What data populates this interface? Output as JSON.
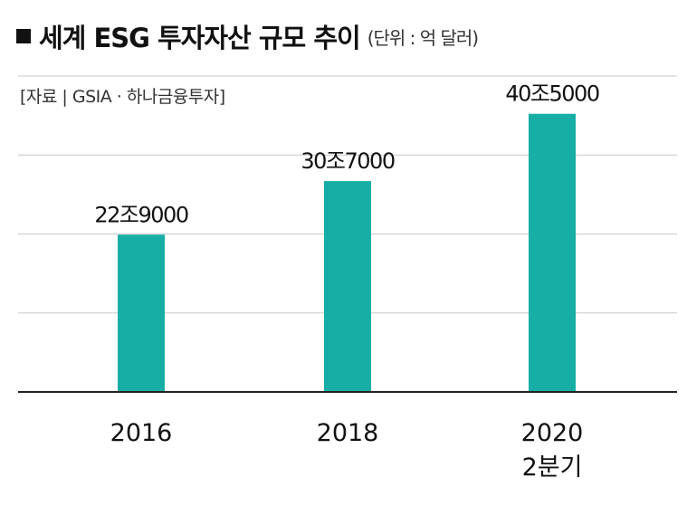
{
  "header": {
    "title": "세계 ESG 투자자산 규모 추이",
    "unit": "(단위 : 억 달러)",
    "source": "[자료 | GSIA · 하나금융투자]"
  },
  "chart_data": {
    "type": "bar",
    "title": "세계 ESG 투자자산 규모 추이",
    "unit": "억 달러",
    "categories": [
      [
        "2016"
      ],
      [
        "2018"
      ],
      [
        "2020",
        "2분기"
      ]
    ],
    "values": [
      229000,
      307000,
      405000
    ],
    "value_labels": [
      "22조9000",
      "30조7000",
      "40조5000"
    ],
    "ylim": [
      0,
      460000
    ],
    "grid": true,
    "colors": {
      "bar": "#17aea6",
      "grid": "#c8c8c8",
      "axis": "#222222",
      "text": "#111111"
    }
  }
}
